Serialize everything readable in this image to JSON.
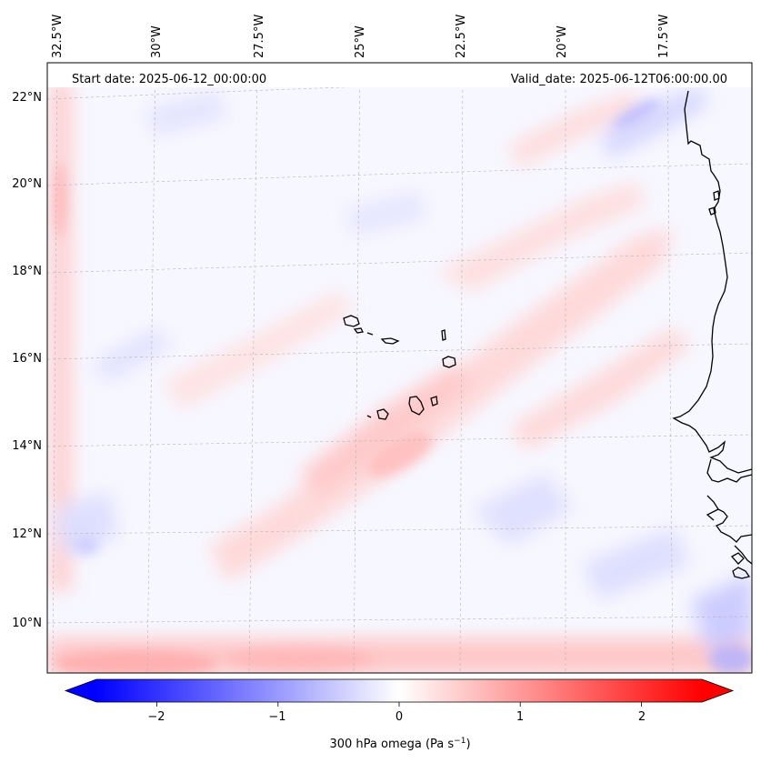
{
  "map": {
    "start_date_label": "Start date: 2025-06-12_00:00:00",
    "valid_date_label": "Valid_date: 2025-06-12T06:00:00.00",
    "lon_ticks": [
      "32.5°W",
      "30°W",
      "27.5°W",
      "25°W",
      "22.5°W",
      "20°W",
      "17.5°W"
    ],
    "lat_ticks": [
      "22°N",
      "20°N",
      "18°N",
      "16°N",
      "14°N",
      "12°N",
      "10°N"
    ],
    "region": "Cape Verde Islands and West African coast",
    "field": "300 hPa omega"
  },
  "colorbar": {
    "ticks": [
      "−2",
      "−1",
      "0",
      "1",
      "2"
    ],
    "tick_values": [
      -2,
      -1,
      0,
      1,
      2
    ],
    "range": [
      -2.5,
      2.5
    ],
    "label_main": "300 hPa omega (Pa s",
    "label_sup": "−1",
    "label_end": ")",
    "colormap": "bwr",
    "color_low": "#0000ff",
    "color_mid": "#ffffff",
    "color_high": "#ff0000"
  }
}
